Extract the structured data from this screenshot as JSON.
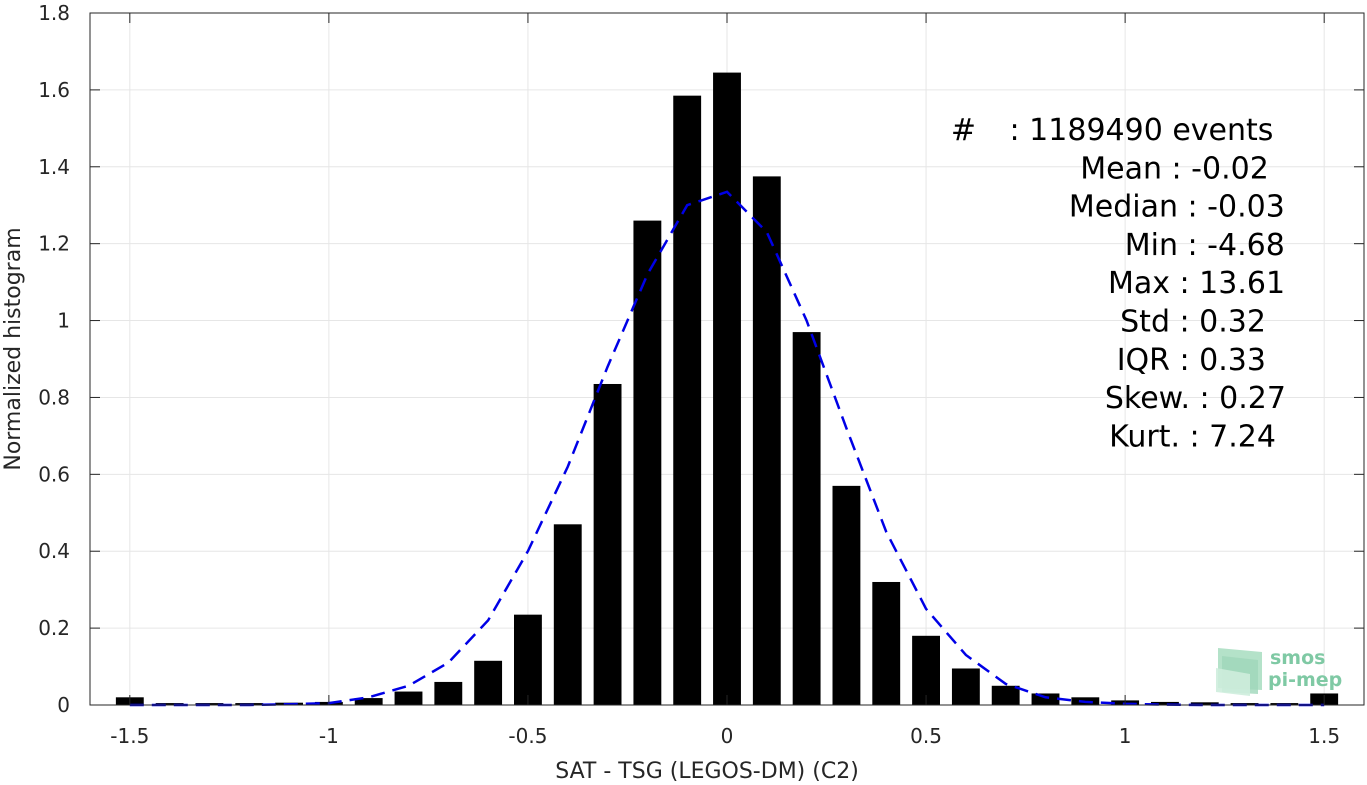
{
  "chart_data": {
    "type": "bar",
    "xlabel": "SAT - TSG (LEGOS-DM) (C2)",
    "ylabel": "Normalized histogram",
    "xlim": [
      -1.6,
      1.6
    ],
    "ylim": [
      0,
      1.8
    ],
    "xticks": [
      -1.5,
      -1,
      -0.5,
      0,
      0.5,
      1,
      1.5
    ],
    "xtick_labels": [
      "-1.5",
      "-1",
      "-0.5",
      "0",
      "0.5",
      "1",
      "1.5"
    ],
    "yticks": [
      0,
      0.2,
      0.4,
      0.6,
      0.8,
      1,
      1.2,
      1.4,
      1.6,
      1.8
    ],
    "ytick_labels": [
      "0",
      "0.2",
      "0.4",
      "0.6",
      "0.8",
      "1",
      "1.2",
      "1.4",
      "1.6",
      "1.8"
    ],
    "grid": true,
    "bar_color": "#000000",
    "curve_color": "#0000e6",
    "bins_x": [
      -1.5,
      -1.4,
      -1.3,
      -1.2,
      -1.1,
      -1.0,
      -0.9,
      -0.8,
      -0.7,
      -0.6,
      -0.5,
      -0.4,
      -0.3,
      -0.2,
      -0.1,
      0.0,
      0.1,
      0.2,
      0.3,
      0.4,
      0.5,
      0.6,
      0.7,
      0.8,
      0.9,
      1.0,
      1.1,
      1.2,
      1.3,
      1.4,
      1.5
    ],
    "bins_y": [
      0.02,
      0.005,
      0.005,
      0.005,
      0.006,
      0.008,
      0.018,
      0.035,
      0.06,
      0.115,
      0.235,
      0.47,
      0.835,
      1.26,
      1.585,
      1.645,
      1.375,
      0.97,
      0.57,
      0.32,
      0.18,
      0.095,
      0.05,
      0.03,
      0.02,
      0.012,
      0.008,
      0.007,
      0.005,
      0.005,
      0.03
    ],
    "curve_x": [
      -1.5,
      -1.4,
      -1.3,
      -1.2,
      -1.1,
      -1.0,
      -0.9,
      -0.8,
      -0.7,
      -0.6,
      -0.5,
      -0.4,
      -0.3,
      -0.2,
      -0.1,
      0.0,
      0.1,
      0.2,
      0.3,
      0.4,
      0.5,
      0.6,
      0.7,
      0.8,
      0.9,
      1.0,
      1.1,
      1.2,
      1.3,
      1.4,
      1.5
    ],
    "curve_y": [
      0,
      0,
      0,
      0,
      0.002,
      0.005,
      0.02,
      0.05,
      0.11,
      0.22,
      0.4,
      0.62,
      0.88,
      1.12,
      1.3,
      1.335,
      1.23,
      1.0,
      0.72,
      0.45,
      0.25,
      0.13,
      0.055,
      0.02,
      0.008,
      0.003,
      0.001,
      0,
      0,
      0,
      0
    ],
    "annotations": [
      {
        "label": "#",
        "value": " : 1189490 events"
      },
      {
        "label": "Mean",
        "value": " : -0.02"
      },
      {
        "label": "Median",
        "value": " : -0.03"
      },
      {
        "label": "Min",
        "value": " : -4.68"
      },
      {
        "label": "Max",
        "value": " : 13.61"
      },
      {
        "label": "Std",
        "value": " : 0.32"
      },
      {
        "label": "IQR",
        "value": " : 0.33"
      },
      {
        "label": "Skew.",
        "value": " : 0.27"
      },
      {
        "label": "Kurt.",
        "value": " : 7.24"
      }
    ]
  },
  "logo": {
    "line1": "smos",
    "line2": "pi-mep"
  }
}
